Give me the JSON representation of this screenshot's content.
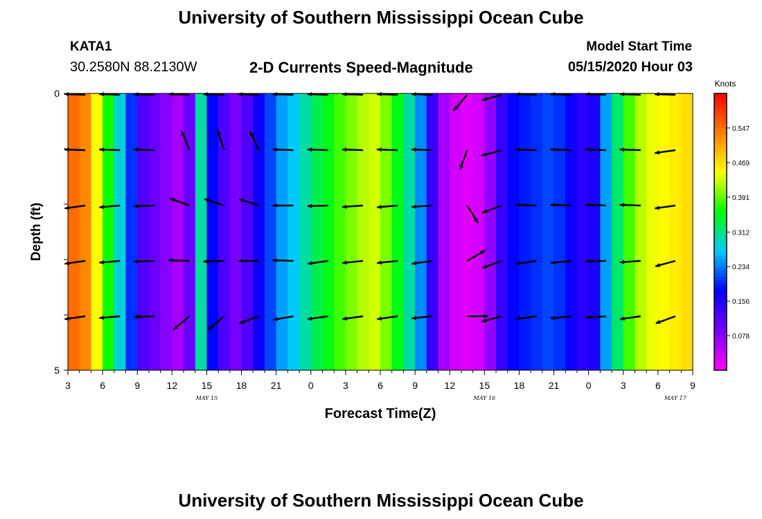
{
  "header": {
    "title": "University of Southern Mississippi Ocean Cube",
    "station": "KATA1",
    "coordinates": "30.2580N 88.2130W",
    "plot_title": "2-D Currents Speed-Magnitude",
    "model_start_label": "Model Start Time",
    "model_start_value": "05/15/2020 Hour 03"
  },
  "footer": {
    "title": "University of Southern Mississippi Ocean Cube"
  },
  "colors": {
    "scale": [
      "#ff00ff",
      "#7a00ff",
      "#0000ff",
      "#00c8ff",
      "#00ff00",
      "#ffff00",
      "#ff8000",
      "#ff0000"
    ],
    "arrow": "#000000"
  },
  "chart_data": {
    "type": "heatmap",
    "title": "2-D Currents Speed-Magnitude",
    "xlabel": "Forecast Time(Z)",
    "ylabel": "Depth (ft)",
    "ylim": [
      0,
      5
    ],
    "y_ticks": [
      "0",
      "5"
    ],
    "x_ticks": [
      "3",
      "6",
      "9",
      "12",
      "15",
      "18",
      "21",
      "0",
      "3",
      "6",
      "9",
      "12",
      "15",
      "18",
      "21",
      "0",
      "3",
      "6",
      "9"
    ],
    "date_labels": [
      {
        "label": "MAY 15",
        "hours_from_start": 12
      },
      {
        "label": "MAY 16",
        "hours_from_start": 36
      },
      {
        "label": "MAY 17",
        "hours_from_start": 52.5
      }
    ],
    "forecast_hours": 54,
    "colorbar": {
      "unit_label": "Knots",
      "range": [
        0,
        0.625
      ],
      "ticks": [
        "0.547",
        "0.469",
        "0.391",
        "0.312",
        "0.234",
        "0.156",
        "0.078"
      ]
    },
    "speed_knots": [
      0.55,
      0.53,
      0.45,
      0.36,
      0.28,
      0.2,
      0.12,
      0.1,
      0.08,
      0.06,
      0.1,
      0.3,
      0.18,
      0.12,
      0.09,
      0.12,
      0.17,
      0.21,
      0.25,
      0.27,
      0.3,
      0.33,
      0.35,
      0.38,
      0.4,
      0.42,
      0.43,
      0.4,
      0.35,
      0.3,
      0.24,
      0.14,
      0.06,
      0.03,
      0.02,
      0.03,
      0.07,
      0.14,
      0.18,
      0.19,
      0.2,
      0.21,
      0.2,
      0.17,
      0.15,
      0.16,
      0.25,
      0.32,
      0.38,
      0.42,
      0.44,
      0.45,
      0.46,
      0.47
    ],
    "vectors": {
      "hours_from_start": [
        1.5,
        4.5,
        7.5,
        10.5,
        13.5,
        16.5,
        19.5,
        22.5,
        25.5,
        28.5,
        31.5,
        34.5,
        37.5,
        40.5,
        43.5,
        46.5,
        49.5,
        52.5
      ],
      "depth_rows": [
        0,
        1,
        2,
        3,
        4
      ],
      "direction_deg": [
        [
          272,
          272,
          272,
          272,
          272,
          272,
          272,
          272,
          272,
          272,
          272,
          220,
          255,
          272,
          272,
          272,
          272,
          272
        ],
        [
          272,
          272,
          272,
          338,
          342,
          335,
          272,
          272,
          272,
          272,
          272,
          200,
          255,
          272,
          272,
          272,
          272,
          262
        ],
        [
          262,
          265,
          268,
          290,
          288,
          288,
          270,
          268,
          266,
          265,
          266,
          148,
          250,
          272,
          272,
          272,
          272,
          262
        ],
        [
          262,
          265,
          268,
          272,
          268,
          270,
          272,
          262,
          264,
          264,
          262,
          60,
          250,
          262,
          264,
          268,
          266,
          255
        ],
        [
          262,
          265,
          268,
          230,
          230,
          250,
          260,
          262,
          262,
          262,
          264,
          90,
          255,
          262,
          264,
          266,
          262,
          250
        ]
      ]
    }
  }
}
